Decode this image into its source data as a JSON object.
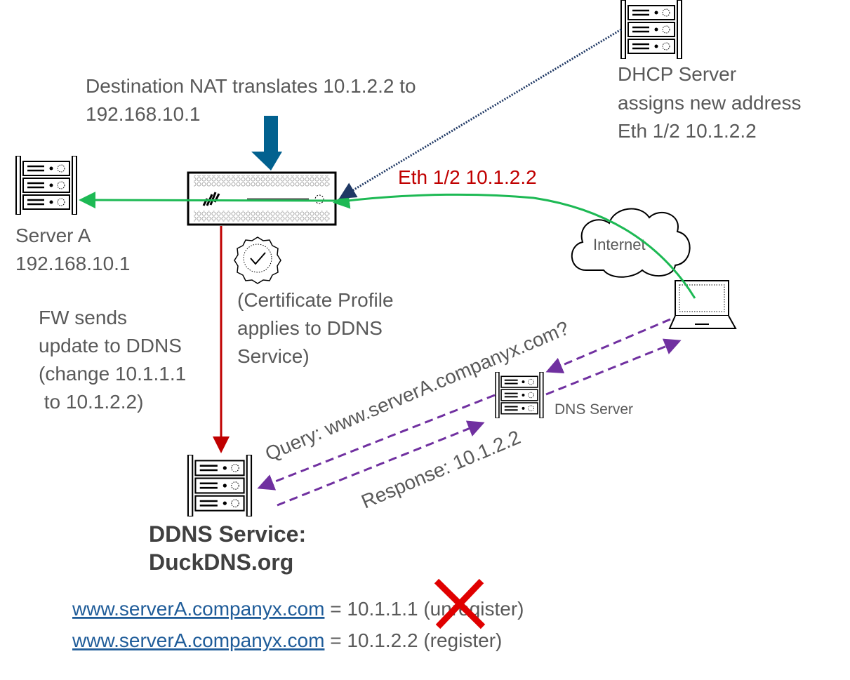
{
  "nat_label": [
    "Destination NAT translates 10.1.2.2 to",
    "192.168.10.1"
  ],
  "dhcp_label": [
    "DHCP Server",
    "assigns new address",
    "Eth 1/2 10.1.2.2"
  ],
  "interface_label": "Eth 1/2  10.1.2.2",
  "server_a_label": [
    "Server A",
    "192.168.10.1"
  ],
  "internet_label": "Internet",
  "fw_update_label": [
    "FW sends",
    "update to DDNS",
    "(change 10.1.1.1",
    " to 10.1.2.2)"
  ],
  "cert_label": [
    "(Certificate Profile",
    "applies to DDNS",
    "Service)"
  ],
  "dns_server_label": "DNS Server",
  "query_label": "Query: www.serverA.companyx.com?",
  "response_label": "Response: 10.1.2.2",
  "ddns_label": [
    "DDNS Service:",
    "DuckDNS.org"
  ],
  "records": [
    {
      "host": "www.serverA.companyx.com",
      "rest": " = 10.1.1.1 (unregister)",
      "struck": true
    },
    {
      "host": "www.serverA.companyx.com",
      "rest": " = 10.1.2.2 (register)",
      "struck": false
    }
  ],
  "colors": {
    "nat_arrow": "#02618F",
    "traffic": "#1DB954",
    "dhcp": "#1F3864",
    "update": "#C00000",
    "dns": "#7030A0",
    "interface_text": "#C00000",
    "strike": "#E00000"
  }
}
